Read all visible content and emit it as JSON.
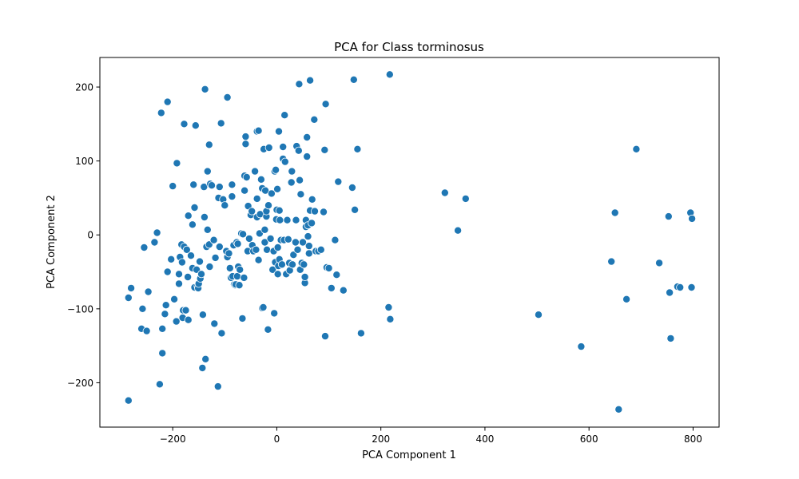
{
  "chart_data": {
    "type": "scatter",
    "title": "PCA for Class torminosus",
    "xlabel": "PCA Component 1",
    "ylabel": "PCA Component 2",
    "xlim": [
      -340,
      850
    ],
    "ylim": [
      -260,
      240
    ],
    "xticks": [
      -200,
      0,
      200,
      400,
      600,
      800
    ],
    "yticks": [
      -200,
      -100,
      0,
      100,
      200
    ],
    "grid": false,
    "marker_color": "#1f77b4",
    "marker_edge_color": "#ffffff",
    "points": [
      [
        -285,
        -224
      ],
      [
        -285,
        -85
      ],
      [
        -280,
        -72
      ],
      [
        -260,
        -127
      ],
      [
        -258,
        -100
      ],
      [
        -255,
        -17
      ],
      [
        -250,
        -130
      ],
      [
        -247,
        -77
      ],
      [
        -235,
        -10
      ],
      [
        -230,
        3
      ],
      [
        -225,
        -202
      ],
      [
        -222,
        165
      ],
      [
        -220,
        -127
      ],
      [
        -220,
        -160
      ],
      [
        -215,
        -107
      ],
      [
        -213,
        -95
      ],
      [
        -210,
        -50
      ],
      [
        -210,
        180
      ],
      [
        -203,
        -33
      ],
      [
        -200,
        66
      ],
      [
        -197,
        -87
      ],
      [
        -193,
        -117
      ],
      [
        -192,
        97
      ],
      [
        -188,
        -66
      ],
      [
        -188,
        -53
      ],
      [
        -186,
        -30
      ],
      [
        -183,
        -13
      ],
      [
        -182,
        -37
      ],
      [
        -181,
        -112
      ],
      [
        -180,
        -102
      ],
      [
        -178,
        -16
      ],
      [
        -178,
        150
      ],
      [
        -175,
        -102
      ],
      [
        -173,
        -20
      ],
      [
        -171,
        -57
      ],
      [
        -170,
        26
      ],
      [
        -170,
        -115
      ],
      [
        -165,
        -28
      ],
      [
        -162,
        -45
      ],
      [
        -162,
        14
      ],
      [
        -160,
        68
      ],
      [
        -158,
        -71
      ],
      [
        -158,
        37
      ],
      [
        -156,
        148
      ],
      [
        -154,
        -47
      ],
      [
        -152,
        -69
      ],
      [
        -151,
        -72
      ],
      [
        -150,
        -66
      ],
      [
        -148,
        -36
      ],
      [
        -147,
        -59
      ],
      [
        -145,
        -53
      ],
      [
        -143,
        -180
      ],
      [
        -142,
        -108
      ],
      [
        -140,
        65
      ],
      [
        -139,
        24
      ],
      [
        -138,
        197
      ],
      [
        -137,
        -168
      ],
      [
        -135,
        -16
      ],
      [
        -133,
        86
      ],
      [
        -133,
        7
      ],
      [
        -130,
        -13
      ],
      [
        -130,
        122
      ],
      [
        -129,
        -43
      ],
      [
        -128,
        69
      ],
      [
        -125,
        67
      ],
      [
        -121,
        -7
      ],
      [
        -120,
        -120
      ],
      [
        -118,
        -31
      ],
      [
        -113,
        -205
      ],
      [
        -112,
        50
      ],
      [
        -110,
        65
      ],
      [
        -110,
        -16
      ],
      [
        -107,
        151
      ],
      [
        -106,
        -133
      ],
      [
        -103,
        48
      ],
      [
        -100,
        40
      ],
      [
        -97,
        -22
      ],
      [
        -95,
        -30
      ],
      [
        -95,
        186
      ],
      [
        -92,
        -25
      ],
      [
        -90,
        -45
      ],
      [
        -88,
        -58
      ],
      [
        -86,
        52
      ],
      [
        -86,
        68
      ],
      [
        -85,
        -56
      ],
      [
        -83,
        -14
      ],
      [
        -82,
        -67
      ],
      [
        -80,
        -68
      ],
      [
        -79,
        -67
      ],
      [
        -77,
        -10
      ],
      [
        -76,
        -56
      ],
      [
        -75,
        -12
      ],
      [
        -74,
        -43
      ],
      [
        -72,
        -68
      ],
      [
        -71,
        -47
      ],
      [
        -68,
        2
      ],
      [
        -66,
        -113
      ],
      [
        -65,
        1
      ],
      [
        -63,
        -58
      ],
      [
        -62,
        60
      ],
      [
        -62,
        80
      ],
      [
        -60,
        123
      ],
      [
        -60,
        133
      ],
      [
        -58,
        78
      ],
      [
        -56,
        -22
      ],
      [
        -55,
        39
      ],
      [
        -53,
        -5
      ],
      [
        -50,
        27
      ],
      [
        -48,
        32
      ],
      [
        -47,
        -14
      ],
      [
        -45,
        -22
      ],
      [
        -42,
        86
      ],
      [
        -40,
        -20
      ],
      [
        -38,
        24
      ],
      [
        -38,
        49
      ],
      [
        -38,
        140
      ],
      [
        -35,
        -34
      ],
      [
        -35,
        141
      ],
      [
        -33,
        2
      ],
      [
        -32,
        28
      ],
      [
        -30,
        75
      ],
      [
        -28,
        63
      ],
      [
        -28,
        -99
      ],
      [
        -26,
        -98
      ],
      [
        -25,
        116
      ],
      [
        -23,
        7
      ],
      [
        -23,
        -10
      ],
      [
        -22,
        60
      ],
      [
        -20,
        25
      ],
      [
        -20,
        32
      ],
      [
        -19,
        -20
      ],
      [
        -17,
        -128
      ],
      [
        -16,
        40
      ],
      [
        -15,
        118
      ],
      [
        -12,
        -5
      ],
      [
        -10,
        56
      ],
      [
        -8,
        -47
      ],
      [
        -6,
        -22
      ],
      [
        -5,
        -106
      ],
      [
        -4,
        86
      ],
      [
        -3,
        -37
      ],
      [
        -2,
        88
      ],
      [
        -1,
        21
      ],
      [
        0,
        34
      ],
      [
        1,
        62
      ],
      [
        2,
        -17
      ],
      [
        2,
        -53
      ],
      [
        3,
        -42
      ],
      [
        4,
        140
      ],
      [
        5,
        33
      ],
      [
        5,
        -33
      ],
      [
        6,
        20
      ],
      [
        8,
        -7
      ],
      [
        10,
        -40
      ],
      [
        12,
        119
      ],
      [
        12,
        103
      ],
      [
        14,
        -7
      ],
      [
        15,
        162
      ],
      [
        16,
        99
      ],
      [
        18,
        -53
      ],
      [
        20,
        20
      ],
      [
        22,
        -6
      ],
      [
        24,
        -38
      ],
      [
        25,
        -48
      ],
      [
        28,
        71
      ],
      [
        29,
        86
      ],
      [
        30,
        -40
      ],
      [
        32,
        -27
      ],
      [
        36,
        -10
      ],
      [
        37,
        20
      ],
      [
        38,
        120
      ],
      [
        40,
        -20
      ],
      [
        42,
        114
      ],
      [
        43,
        204
      ],
      [
        44,
        74
      ],
      [
        45,
        -47
      ],
      [
        46,
        55
      ],
      [
        48,
        -38
      ],
      [
        50,
        -10
      ],
      [
        52,
        -40
      ],
      [
        54,
        -65
      ],
      [
        54,
        -57
      ],
      [
        56,
        20
      ],
      [
        56,
        11
      ],
      [
        58,
        132
      ],
      [
        58,
        106
      ],
      [
        60,
        -2
      ],
      [
        60,
        13
      ],
      [
        62,
        -15
      ],
      [
        62,
        -25
      ],
      [
        64,
        33
      ],
      [
        64,
        209
      ],
      [
        67,
        16
      ],
      [
        68,
        48
      ],
      [
        72,
        156
      ],
      [
        73,
        32
      ],
      [
        75,
        -22
      ],
      [
        80,
        -22
      ],
      [
        85,
        -20
      ],
      [
        90,
        31
      ],
      [
        92,
        115
      ],
      [
        93,
        -137
      ],
      [
        94,
        177
      ],
      [
        96,
        -44
      ],
      [
        100,
        -45
      ],
      [
        105,
        -72
      ],
      [
        112,
        -7
      ],
      [
        115,
        -54
      ],
      [
        118,
        72
      ],
      [
        128,
        -75
      ],
      [
        145,
        64
      ],
      [
        148,
        210
      ],
      [
        150,
        34
      ],
      [
        155,
        116
      ],
      [
        162,
        -133
      ],
      [
        215,
        -98
      ],
      [
        217,
        217
      ],
      [
        218,
        -114
      ],
      [
        323,
        57
      ],
      [
        348,
        6
      ],
      [
        363,
        49
      ],
      [
        503,
        -108
      ],
      [
        585,
        -151
      ],
      [
        643,
        -36
      ],
      [
        650,
        30
      ],
      [
        657,
        -236
      ],
      [
        672,
        -87
      ],
      [
        691,
        116
      ],
      [
        735,
        -38
      ],
      [
        753,
        25
      ],
      [
        755,
        -78
      ],
      [
        757,
        -140
      ],
      [
        770,
        -70
      ],
      [
        775,
        -71
      ],
      [
        795,
        30
      ],
      [
        797,
        -71
      ],
      [
        798,
        22
      ]
    ]
  }
}
